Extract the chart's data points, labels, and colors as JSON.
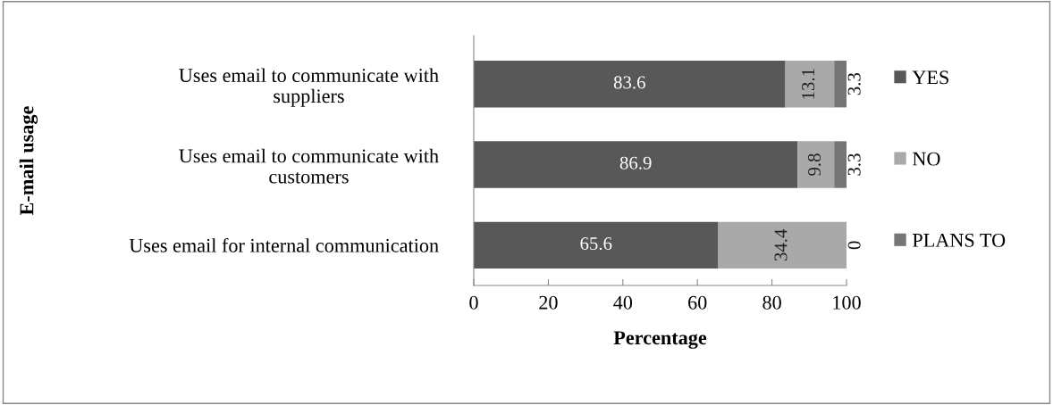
{
  "chart_data": {
    "type": "bar",
    "orientation": "horizontal",
    "stacked": true,
    "data_labels": true,
    "xlabel": "Percentage",
    "ylabel": "E-mail usage",
    "categories": [
      "Uses email to communicate with\nsuppliers",
      "Uses email to communicate with\ncustomers",
      "Uses email for internal communication"
    ],
    "series": [
      {
        "name": "YES",
        "color": "#585858",
        "values": [
          83.6,
          86.9,
          65.6
        ]
      },
      {
        "name": "NO",
        "color": "#a9a9a9",
        "values": [
          13.1,
          9.8,
          34.4
        ]
      },
      {
        "name": "PLANS TO",
        "color": "#767676",
        "values": [
          3.3,
          3.3,
          0
        ]
      }
    ],
    "xlim": [
      0,
      100
    ],
    "xticks": [
      0,
      20,
      40,
      60,
      80,
      100
    ],
    "grid": false,
    "legend": "right"
  }
}
